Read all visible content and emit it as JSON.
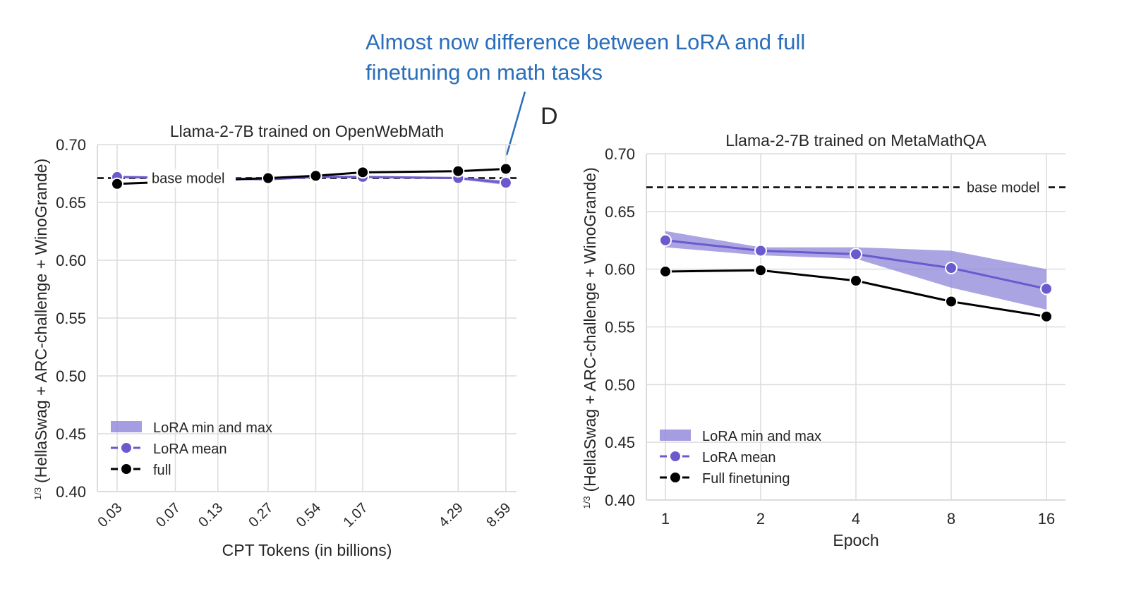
{
  "annotation": {
    "line1": "Almost now difference between LoRA and full",
    "line2": "finetuning on math tasks",
    "color": "#2a6ebb"
  },
  "panel_letter": "D",
  "colors": {
    "lora": "#6a5acd",
    "band": "#8f85d9",
    "full": "#000000",
    "grid": "#dcdcdc"
  },
  "chart_data": [
    {
      "type": "line",
      "title": "Llama-2-7B trained on OpenWebMath",
      "xlabel": "CPT Tokens (in billions)",
      "ylabel": "(HellaSwag + ARC-challenge + WinoGrande)",
      "ylabel_fraction": "1/3",
      "x_scale": "log2",
      "x_ticks": [
        "0.03",
        "0.07",
        "0.13",
        "0.27",
        "0.54",
        "1.07",
        "4.29",
        "8.59"
      ],
      "y_ticks": [
        "0.40",
        "0.45",
        "0.50",
        "0.55",
        "0.60",
        "0.65",
        "0.70"
      ],
      "ylim": [
        0.4,
        0.7
      ],
      "grid": true,
      "baseline": {
        "label": "base model",
        "value": 0.671
      },
      "x": [
        0.03,
        0.27,
        0.54,
        1.07,
        4.29,
        8.59
      ],
      "series": [
        {
          "name": "LoRA mean",
          "values": [
            0.672,
            0.67,
            0.672,
            0.672,
            0.671,
            0.667
          ]
        },
        {
          "name": "full",
          "values": [
            0.666,
            0.671,
            0.673,
            0.676,
            0.677,
            0.679
          ]
        }
      ],
      "band": {
        "name": "LoRA min and max",
        "min": [
          0.671,
          0.669,
          0.671,
          0.671,
          0.67,
          0.665
        ],
        "max": [
          0.673,
          0.671,
          0.673,
          0.673,
          0.672,
          0.669
        ]
      },
      "legend": {
        "placement": "lower-left",
        "entries": [
          "LoRA min and max",
          "LoRA mean",
          "full"
        ]
      }
    },
    {
      "type": "line",
      "title": "Llama-2-7B trained on MetaMathQA",
      "xlabel": "Epoch",
      "ylabel": "(HellaSwag + ARC-challenge + WinoGrande)",
      "ylabel_fraction": "1/3",
      "x_scale": "log2",
      "x_ticks": [
        "1",
        "2",
        "4",
        "8",
        "16"
      ],
      "y_ticks": [
        "0.40",
        "0.45",
        "0.50",
        "0.55",
        "0.60",
        "0.65",
        "0.70"
      ],
      "ylim": [
        0.4,
        0.7
      ],
      "grid": true,
      "baseline": {
        "label": "base model",
        "value": 0.671
      },
      "x": [
        1,
        2,
        4,
        8,
        16
      ],
      "series": [
        {
          "name": "LoRA mean",
          "values": [
            0.625,
            0.616,
            0.613,
            0.601,
            0.583
          ]
        },
        {
          "name": "Full finetuning",
          "values": [
            0.598,
            0.599,
            0.59,
            0.572,
            0.559
          ]
        }
      ],
      "band": {
        "name": "LoRA min and max",
        "min": [
          0.619,
          0.612,
          0.609,
          0.584,
          0.565
        ],
        "max": [
          0.633,
          0.619,
          0.619,
          0.616,
          0.6
        ]
      },
      "legend": {
        "placement": "lower-left",
        "entries": [
          "LoRA min and max",
          "LoRA mean",
          "Full finetuning"
        ]
      }
    }
  ]
}
